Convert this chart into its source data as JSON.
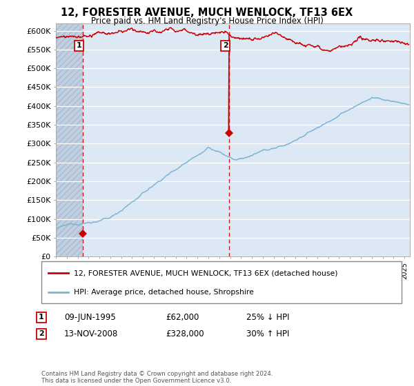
{
  "title": "12, FORESTER AVENUE, MUCH WENLOCK, TF13 6EX",
  "subtitle": "Price paid vs. HM Land Registry's House Price Index (HPI)",
  "ylabel_ticks": [
    "£0",
    "£50K",
    "£100K",
    "£150K",
    "£200K",
    "£250K",
    "£300K",
    "£350K",
    "£400K",
    "£450K",
    "£500K",
    "£550K",
    "£600K"
  ],
  "ytick_values": [
    0,
    50000,
    100000,
    150000,
    200000,
    250000,
    300000,
    350000,
    400000,
    450000,
    500000,
    550000,
    600000
  ],
  "xlim": [
    1993.0,
    2025.5
  ],
  "ylim": [
    0,
    620000
  ],
  "legend_line1": "12, FORESTER AVENUE, MUCH WENLOCK, TF13 6EX (detached house)",
  "legend_line2": "HPI: Average price, detached house, Shropshire",
  "marker1_x": 1995.44,
  "marker1_y": 62000,
  "marker1_label": "1",
  "marker2_x": 2008.87,
  "marker2_y": 328000,
  "marker2_label": "2",
  "sale1_date": "09-JUN-1995",
  "sale1_price": "£62,000",
  "sale1_hpi": "25% ↓ HPI",
  "sale2_date": "13-NOV-2008",
  "sale2_price": "£328,000",
  "sale2_hpi": "30% ↑ HPI",
  "footer": "Contains HM Land Registry data © Crown copyright and database right 2024.\nThis data is licensed under the Open Government Licence v3.0.",
  "line_color_red": "#cc0000",
  "line_color_blue": "#7fb3d3",
  "vline_color": "#cc0000",
  "bg_color": "#dce9f5",
  "hatch_color": "#c0cfe0",
  "grid_color": "#ffffff"
}
